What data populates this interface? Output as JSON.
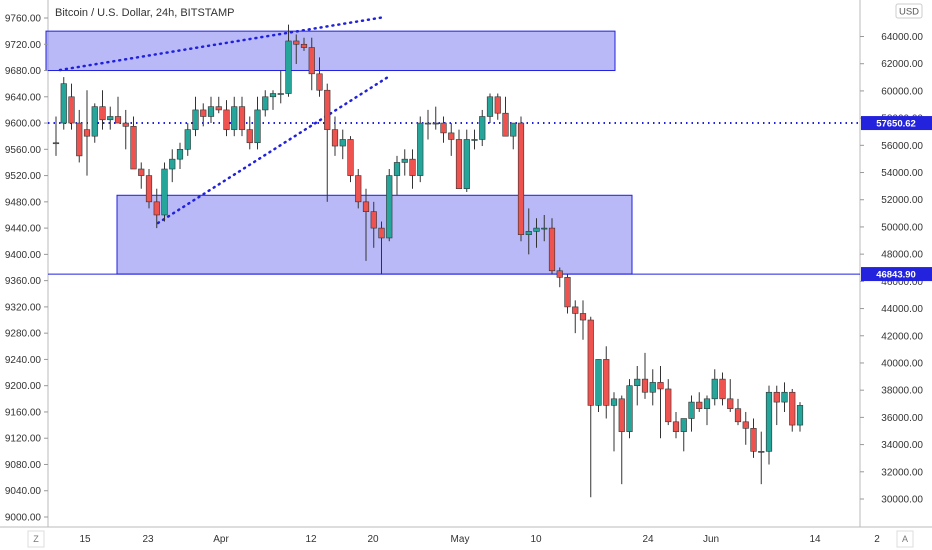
{
  "header": {
    "title": "Bitcoin / U.S. Dollar, 24h, BITSTAMP",
    "currency_label": "USD",
    "axis_mode_left": "Z",
    "axis_mode_right": "A"
  },
  "colors": {
    "up_candle": "#26a69a",
    "down_candle": "#ef5350",
    "zone_fill": "#8080f0",
    "zone_stroke": "#2020dd",
    "line_blue": "#2020dd",
    "pricetag_bg": "#2323dd"
  },
  "chart_data": {
    "type": "candlestick",
    "title": "Bitcoin / U.S. Dollar, 24h, BITSTAMP",
    "left_axis": {
      "min": 9000,
      "max": 9760,
      "ticks": [
        "9760.00",
        "9720.00",
        "9680.00",
        "9640.00",
        "9600.00",
        "9560.00",
        "9520.00",
        "9480.00",
        "9440.00",
        "9400.00",
        "9360.00",
        "9320.00",
        "9280.00",
        "9240.00",
        "9200.00",
        "9160.00",
        "9120.00",
        "9080.00",
        "9040.00",
        "9000.00"
      ]
    },
    "right_axis": {
      "unit": "USD",
      "min": 30000,
      "max": 66000,
      "ticks": [
        "64000.00",
        "62000.00",
        "60000.00",
        "58000.00",
        "56000.00",
        "54000.00",
        "52000.00",
        "50000.00",
        "48000.00",
        "46000.00",
        "44000.00",
        "42000.00",
        "40000.00",
        "38000.00",
        "36000.00",
        "34000.00",
        "32000.00",
        "30000.00"
      ],
      "price_tags": [
        "57650.62",
        "46843.90"
      ]
    },
    "x_axis": {
      "labels": [
        "15",
        "23",
        "Apr",
        "12",
        "20",
        "May",
        "10",
        "24",
        "Jun",
        "14",
        "2"
      ]
    },
    "candles": [
      {
        "o": 9570,
        "h": 9610,
        "l": 9550,
        "c": 9570
      },
      {
        "o": 9600,
        "h": 9670,
        "l": 9590,
        "c": 9660
      },
      {
        "o": 9640,
        "h": 9660,
        "l": 9590,
        "c": 9600
      },
      {
        "o": 9600,
        "h": 9620,
        "l": 9540,
        "c": 9550
      },
      {
        "o": 9590,
        "h": 9650,
        "l": 9520,
        "c": 9580
      },
      {
        "o": 9580,
        "h": 9630,
        "l": 9570,
        "c": 9625
      },
      {
        "o": 9625,
        "h": 9650,
        "l": 9590,
        "c": 9605
      },
      {
        "o": 9605,
        "h": 9625,
        "l": 9590,
        "c": 9610
      },
      {
        "o": 9610,
        "h": 9640,
        "l": 9600,
        "c": 9600
      },
      {
        "o": 9600,
        "h": 9620,
        "l": 9560,
        "c": 9595
      },
      {
        "o": 9595,
        "h": 9610,
        "l": 9530,
        "c": 9530
      },
      {
        "o": 9530,
        "h": 9540,
        "l": 9500,
        "c": 9520
      },
      {
        "o": 9520,
        "h": 9530,
        "l": 9470,
        "c": 9480
      },
      {
        "o": 9480,
        "h": 9500,
        "l": 9440,
        "c": 9460
      },
      {
        "o": 9460,
        "h": 9540,
        "l": 9450,
        "c": 9530
      },
      {
        "o": 9530,
        "h": 9560,
        "l": 9510,
        "c": 9545
      },
      {
        "o": 9545,
        "h": 9570,
        "l": 9530,
        "c": 9560
      },
      {
        "o": 9560,
        "h": 9600,
        "l": 9550,
        "c": 9590
      },
      {
        "o": 9590,
        "h": 9640,
        "l": 9580,
        "c": 9620
      },
      {
        "o": 9620,
        "h": 9630,
        "l": 9595,
        "c": 9610
      },
      {
        "o": 9610,
        "h": 9640,
        "l": 9600,
        "c": 9625
      },
      {
        "o": 9625,
        "h": 9640,
        "l": 9615,
        "c": 9620
      },
      {
        "o": 9620,
        "h": 9635,
        "l": 9580,
        "c": 9590
      },
      {
        "o": 9590,
        "h": 9640,
        "l": 9580,
        "c": 9625
      },
      {
        "o": 9625,
        "h": 9640,
        "l": 9580,
        "c": 9590
      },
      {
        "o": 9590,
        "h": 9610,
        "l": 9560,
        "c": 9570
      },
      {
        "o": 9570,
        "h": 9640,
        "l": 9560,
        "c": 9620
      },
      {
        "o": 9620,
        "h": 9650,
        "l": 9610,
        "c": 9640
      },
      {
        "o": 9640,
        "h": 9650,
        "l": 9620,
        "c": 9645
      },
      {
        "o": 9645,
        "h": 9680,
        "l": 9630,
        "c": 9645
      },
      {
        "o": 9645,
        "h": 9750,
        "l": 9640,
        "c": 9725
      },
      {
        "o": 9725,
        "h": 9735,
        "l": 9690,
        "c": 9720
      },
      {
        "o": 9720,
        "h": 9730,
        "l": 9710,
        "c": 9715
      },
      {
        "o": 9715,
        "h": 9730,
        "l": 9650,
        "c": 9675
      },
      {
        "o": 9675,
        "h": 9700,
        "l": 9640,
        "c": 9650
      },
      {
        "o": 9650,
        "h": 9660,
        "l": 9480,
        "c": 9590
      },
      {
        "o": 9590,
        "h": 9610,
        "l": 9550,
        "c": 9565
      },
      {
        "o": 9565,
        "h": 9590,
        "l": 9545,
        "c": 9575
      },
      {
        "o": 9575,
        "h": 9580,
        "l": 9510,
        "c": 9520
      },
      {
        "o": 9520,
        "h": 9530,
        "l": 9470,
        "c": 9480
      },
      {
        "o": 9480,
        "h": 9500,
        "l": 9390,
        "c": 9465
      },
      {
        "o": 9465,
        "h": 9480,
        "l": 9410,
        "c": 9440
      },
      {
        "o": 9440,
        "h": 9450,
        "l": 9370,
        "c": 9425
      },
      {
        "o": 9425,
        "h": 9530,
        "l": 9420,
        "c": 9520
      },
      {
        "o": 9520,
        "h": 9550,
        "l": 9490,
        "c": 9540
      },
      {
        "o": 9540,
        "h": 9560,
        "l": 9520,
        "c": 9545
      },
      {
        "o": 9545,
        "h": 9560,
        "l": 9500,
        "c": 9520
      },
      {
        "o": 9520,
        "h": 9610,
        "l": 9510,
        "c": 9600
      },
      {
        "o": 9600,
        "h": 9620,
        "l": 9575,
        "c": 9600
      },
      {
        "o": 9600,
        "h": 9625,
        "l": 9590,
        "c": 9600
      },
      {
        "o": 9600,
        "h": 9610,
        "l": 9570,
        "c": 9585
      },
      {
        "o": 9585,
        "h": 9600,
        "l": 9550,
        "c": 9575
      },
      {
        "o": 9575,
        "h": 9590,
        "l": 9500,
        "c": 9500
      },
      {
        "o": 9500,
        "h": 9590,
        "l": 9495,
        "c": 9575
      },
      {
        "o": 9575,
        "h": 9590,
        "l": 9560,
        "c": 9575
      },
      {
        "o": 9575,
        "h": 9620,
        "l": 9565,
        "c": 9610
      },
      {
        "o": 9610,
        "h": 9645,
        "l": 9600,
        "c": 9640
      },
      {
        "o": 9640,
        "h": 9645,
        "l": 9605,
        "c": 9615
      },
      {
        "o": 9615,
        "h": 9640,
        "l": 9580,
        "c": 9580
      },
      {
        "o": 9580,
        "h": 9600,
        "l": 9560,
        "c": 9600
      },
      {
        "o": 9600,
        "h": 9610,
        "l": 9420,
        "c": 9430
      },
      {
        "o": 9430,
        "h": 9470,
        "l": 9400,
        "c": 9435
      },
      {
        "o": 9435,
        "h": 9455,
        "l": 9410,
        "c": 9440
      },
      {
        "o": 9440,
        "h": 9460,
        "l": 9420,
        "c": 9440
      },
      {
        "o": 9440,
        "h": 9455,
        "l": 9370,
        "c": 9375
      },
      {
        "o": 9375,
        "h": 9380,
        "l": 9350,
        "c": 9365
      },
      {
        "o": 9365,
        "h": 9370,
        "l": 9310,
        "c": 9320
      },
      {
        "o": 9320,
        "h": 9330,
        "l": 9280,
        "c": 9310
      },
      {
        "o": 9310,
        "h": 9330,
        "l": 9270,
        "c": 9300
      },
      {
        "o": 9300,
        "h": 9305,
        "l": 9030,
        "c": 9170
      },
      {
        "o": 9170,
        "h": 9240,
        "l": 9160,
        "c": 9240
      },
      {
        "o": 9240,
        "h": 9260,
        "l": 9150,
        "c": 9170
      },
      {
        "o": 9170,
        "h": 9190,
        "l": 9100,
        "c": 9180
      },
      {
        "o": 9180,
        "h": 9185,
        "l": 9050,
        "c": 9130
      },
      {
        "o": 9130,
        "h": 9210,
        "l": 9120,
        "c": 9200
      },
      {
        "o": 9200,
        "h": 9230,
        "l": 9170,
        "c": 9210
      },
      {
        "o": 9210,
        "h": 9250,
        "l": 9180,
        "c": 9190
      },
      {
        "o": 9190,
        "h": 9225,
        "l": 9170,
        "c": 9205
      },
      {
        "o": 9205,
        "h": 9230,
        "l": 9120,
        "c": 9195
      },
      {
        "o": 9195,
        "h": 9210,
        "l": 9140,
        "c": 9145
      },
      {
        "o": 9145,
        "h": 9160,
        "l": 9120,
        "c": 9130
      },
      {
        "o": 9130,
        "h": 9150,
        "l": 9100,
        "c": 9150
      },
      {
        "o": 9150,
        "h": 9185,
        "l": 9130,
        "c": 9175
      },
      {
        "o": 9175,
        "h": 9190,
        "l": 9160,
        "c": 9165
      },
      {
        "o": 9165,
        "h": 9185,
        "l": 9140,
        "c": 9180
      },
      {
        "o": 9180,
        "h": 9225,
        "l": 9170,
        "c": 9210
      },
      {
        "o": 9210,
        "h": 9220,
        "l": 9170,
        "c": 9180
      },
      {
        "o": 9180,
        "h": 9210,
        "l": 9160,
        "c": 9165
      },
      {
        "o": 9165,
        "h": 9180,
        "l": 9140,
        "c": 9145
      },
      {
        "o": 9145,
        "h": 9160,
        "l": 9110,
        "c": 9135
      },
      {
        "o": 9135,
        "h": 9150,
        "l": 9090,
        "c": 9100
      },
      {
        "o": 9100,
        "h": 9130,
        "l": 9050,
        "c": 9100
      },
      {
        "o": 9100,
        "h": 9200,
        "l": 9080,
        "c": 9190
      },
      {
        "o": 9190,
        "h": 9200,
        "l": 9140,
        "c": 9175
      },
      {
        "o": 9175,
        "h": 9205,
        "l": 9160,
        "c": 9190
      },
      {
        "o": 9190,
        "h": 9195,
        "l": 9130,
        "c": 9140
      },
      {
        "o": 9140,
        "h": 9175,
        "l": 9130,
        "c": 9170
      }
    ],
    "zones": [
      {
        "from_index": 0,
        "to_index": 90,
        "top": 9740,
        "bottom": 9680
      },
      {
        "from_index": 9,
        "to_index": 91,
        "top": 9490,
        "bottom": 9370
      }
    ],
    "horizontal_lines": [
      {
        "price": 9600,
        "style": "dotted"
      },
      {
        "price": 9370,
        "style": "solid"
      }
    ],
    "trendlines": [
      {
        "from": {
          "index": 0,
          "price": 9680
        },
        "to": {
          "index": 48,
          "price": 9770
        }
      },
      {
        "from": {
          "index": 15,
          "price": 9450
        },
        "to": {
          "index": 50,
          "price": 9670
        }
      }
    ]
  }
}
